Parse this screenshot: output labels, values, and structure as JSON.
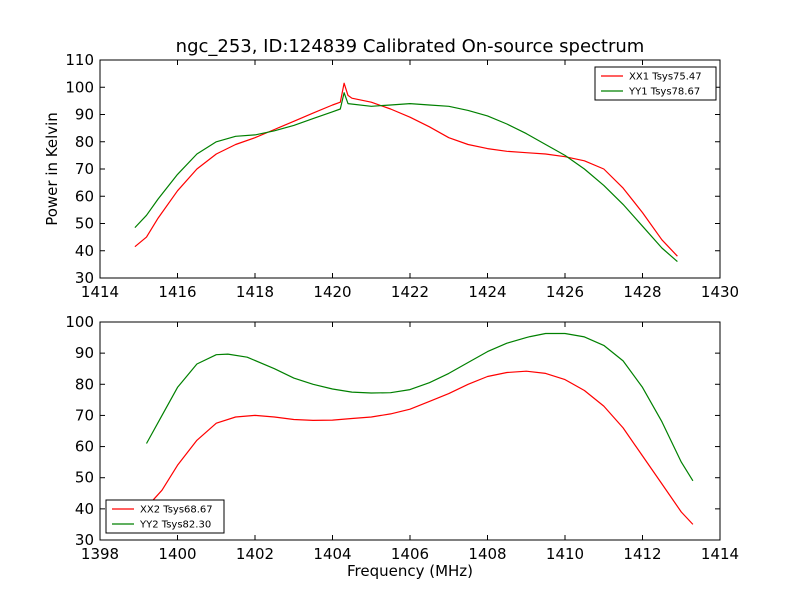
{
  "chart_data": [
    {
      "type": "line",
      "title": "ngc_253, ID:124839 Calibrated On-source spectrum",
      "xlabel": "",
      "ylabel": "Power in Kelvin",
      "xlim": [
        1414,
        1430
      ],
      "ylim": [
        30,
        110
      ],
      "xticks": [
        "1414",
        "1416",
        "1418",
        "1420",
        "1422",
        "1424",
        "1426",
        "1428",
        "1430"
      ],
      "yticks": [
        "30",
        "40",
        "50",
        "60",
        "70",
        "80",
        "90",
        "100",
        "110"
      ],
      "legend_position": "top-right",
      "series": [
        {
          "name": "XX1 Tsys75.47",
          "color": "#ff0000",
          "points": [
            [
              1414.9,
              41.5
            ],
            [
              1415.2,
              45
            ],
            [
              1415.5,
              52
            ],
            [
              1416.0,
              62
            ],
            [
              1416.5,
              70
            ],
            [
              1417.0,
              75.5
            ],
            [
              1417.5,
              79
            ],
            [
              1418.0,
              81.5
            ],
            [
              1418.5,
              84.5
            ],
            [
              1419.0,
              87.5
            ],
            [
              1419.5,
              90.5
            ],
            [
              1420.0,
              93.5
            ],
            [
              1420.2,
              94.5
            ],
            [
              1420.3,
              101.5
            ],
            [
              1420.4,
              97
            ],
            [
              1420.5,
              96
            ],
            [
              1421.0,
              94.5
            ],
            [
              1421.5,
              92
            ],
            [
              1422.0,
              89
            ],
            [
              1422.5,
              85.5
            ],
            [
              1423.0,
              81.5
            ],
            [
              1423.5,
              79
            ],
            [
              1424.0,
              77.5
            ],
            [
              1424.5,
              76.5
            ],
            [
              1425.0,
              76
            ],
            [
              1425.5,
              75.5
            ],
            [
              1426.0,
              74.5
            ],
            [
              1426.5,
              73
            ],
            [
              1427.0,
              70
            ],
            [
              1427.5,
              63
            ],
            [
              1428.0,
              54
            ],
            [
              1428.5,
              44
            ],
            [
              1428.9,
              38
            ]
          ]
        },
        {
          "name": "YY1 Tsys78.67",
          "color": "#008000",
          "points": [
            [
              1414.9,
              48.5
            ],
            [
              1415.2,
              53
            ],
            [
              1415.5,
              59
            ],
            [
              1416.0,
              68
            ],
            [
              1416.5,
              75.5
            ],
            [
              1417.0,
              80
            ],
            [
              1417.5,
              82
            ],
            [
              1418.0,
              82.5
            ],
            [
              1418.5,
              84
            ],
            [
              1419.0,
              86
            ],
            [
              1419.5,
              88.5
            ],
            [
              1420.0,
              91
            ],
            [
              1420.2,
              92
            ],
            [
              1420.3,
              98
            ],
            [
              1420.4,
              94
            ],
            [
              1421.0,
              93
            ],
            [
              1421.5,
              93.5
            ],
            [
              1422.0,
              94
            ],
            [
              1422.5,
              93.5
            ],
            [
              1423.0,
              93
            ],
            [
              1423.5,
              91.5
            ],
            [
              1424.0,
              89.5
            ],
            [
              1424.5,
              86.5
            ],
            [
              1425.0,
              83
            ],
            [
              1425.5,
              79
            ],
            [
              1426.0,
              75
            ],
            [
              1426.5,
              70
            ],
            [
              1427.0,
              64
            ],
            [
              1427.5,
              57
            ],
            [
              1428.0,
              49
            ],
            [
              1428.5,
              41
            ],
            [
              1428.9,
              36
            ]
          ]
        }
      ]
    },
    {
      "type": "line",
      "title": "",
      "xlabel": "Frequency (MHz)",
      "ylabel": "",
      "xlim": [
        1398,
        1414
      ],
      "ylim": [
        30,
        100
      ],
      "xticks": [
        "1398",
        "1400",
        "1402",
        "1404",
        "1406",
        "1408",
        "1410",
        "1412",
        "1414"
      ],
      "yticks": [
        "30",
        "40",
        "50",
        "60",
        "70",
        "80",
        "90",
        "100"
      ],
      "legend_position": "bottom-left",
      "series": [
        {
          "name": "XX2 Tsys68.67",
          "color": "#ff0000",
          "points": [
            [
              1399.2,
              40.5
            ],
            [
              1399.6,
              46
            ],
            [
              1400.0,
              54
            ],
            [
              1400.5,
              62
            ],
            [
              1401.0,
              67.5
            ],
            [
              1401.5,
              69.5
            ],
            [
              1402.0,
              70
            ],
            [
              1402.5,
              69.5
            ],
            [
              1403.0,
              68.7
            ],
            [
              1403.5,
              68.4
            ],
            [
              1404.0,
              68.5
            ],
            [
              1404.5,
              69
            ],
            [
              1405.0,
              69.5
            ],
            [
              1405.5,
              70.5
            ],
            [
              1406.0,
              72
            ],
            [
              1406.5,
              74.5
            ],
            [
              1407.0,
              77
            ],
            [
              1407.5,
              80
            ],
            [
              1408.0,
              82.5
            ],
            [
              1408.5,
              83.8
            ],
            [
              1409.0,
              84.2
            ],
            [
              1409.5,
              83.5
            ],
            [
              1410.0,
              81.5
            ],
            [
              1410.5,
              78
            ],
            [
              1411.0,
              73
            ],
            [
              1411.5,
              66
            ],
            [
              1412.0,
              57
            ],
            [
              1412.5,
              48
            ],
            [
              1413.0,
              39
            ],
            [
              1413.3,
              35
            ]
          ]
        },
        {
          "name": "YY2 Tsys82.30",
          "color": "#008000",
          "points": [
            [
              1399.2,
              61
            ],
            [
              1399.6,
              70
            ],
            [
              1400.0,
              79
            ],
            [
              1400.5,
              86.5
            ],
            [
              1401.0,
              89.5
            ],
            [
              1401.3,
              89.7
            ],
            [
              1401.8,
              88.7
            ],
            [
              1402.5,
              85
            ],
            [
              1403.0,
              82
            ],
            [
              1403.5,
              80
            ],
            [
              1404.0,
              78.5
            ],
            [
              1404.5,
              77.5
            ],
            [
              1405.0,
              77.2
            ],
            [
              1405.5,
              77.3
            ],
            [
              1406.0,
              78.3
            ],
            [
              1406.5,
              80.5
            ],
            [
              1407.0,
              83.5
            ],
            [
              1407.5,
              87
            ],
            [
              1408.0,
              90.5
            ],
            [
              1408.5,
              93.2
            ],
            [
              1409.0,
              95
            ],
            [
              1409.1,
              95.3
            ],
            [
              1409.5,
              96.3
            ],
            [
              1410.0,
              96.3
            ],
            [
              1410.5,
              95.2
            ],
            [
              1411.0,
              92.5
            ],
            [
              1411.5,
              87.5
            ],
            [
              1412.0,
              79
            ],
            [
              1412.5,
              68
            ],
            [
              1413.0,
              55
            ],
            [
              1413.3,
              49
            ]
          ]
        }
      ]
    }
  ]
}
